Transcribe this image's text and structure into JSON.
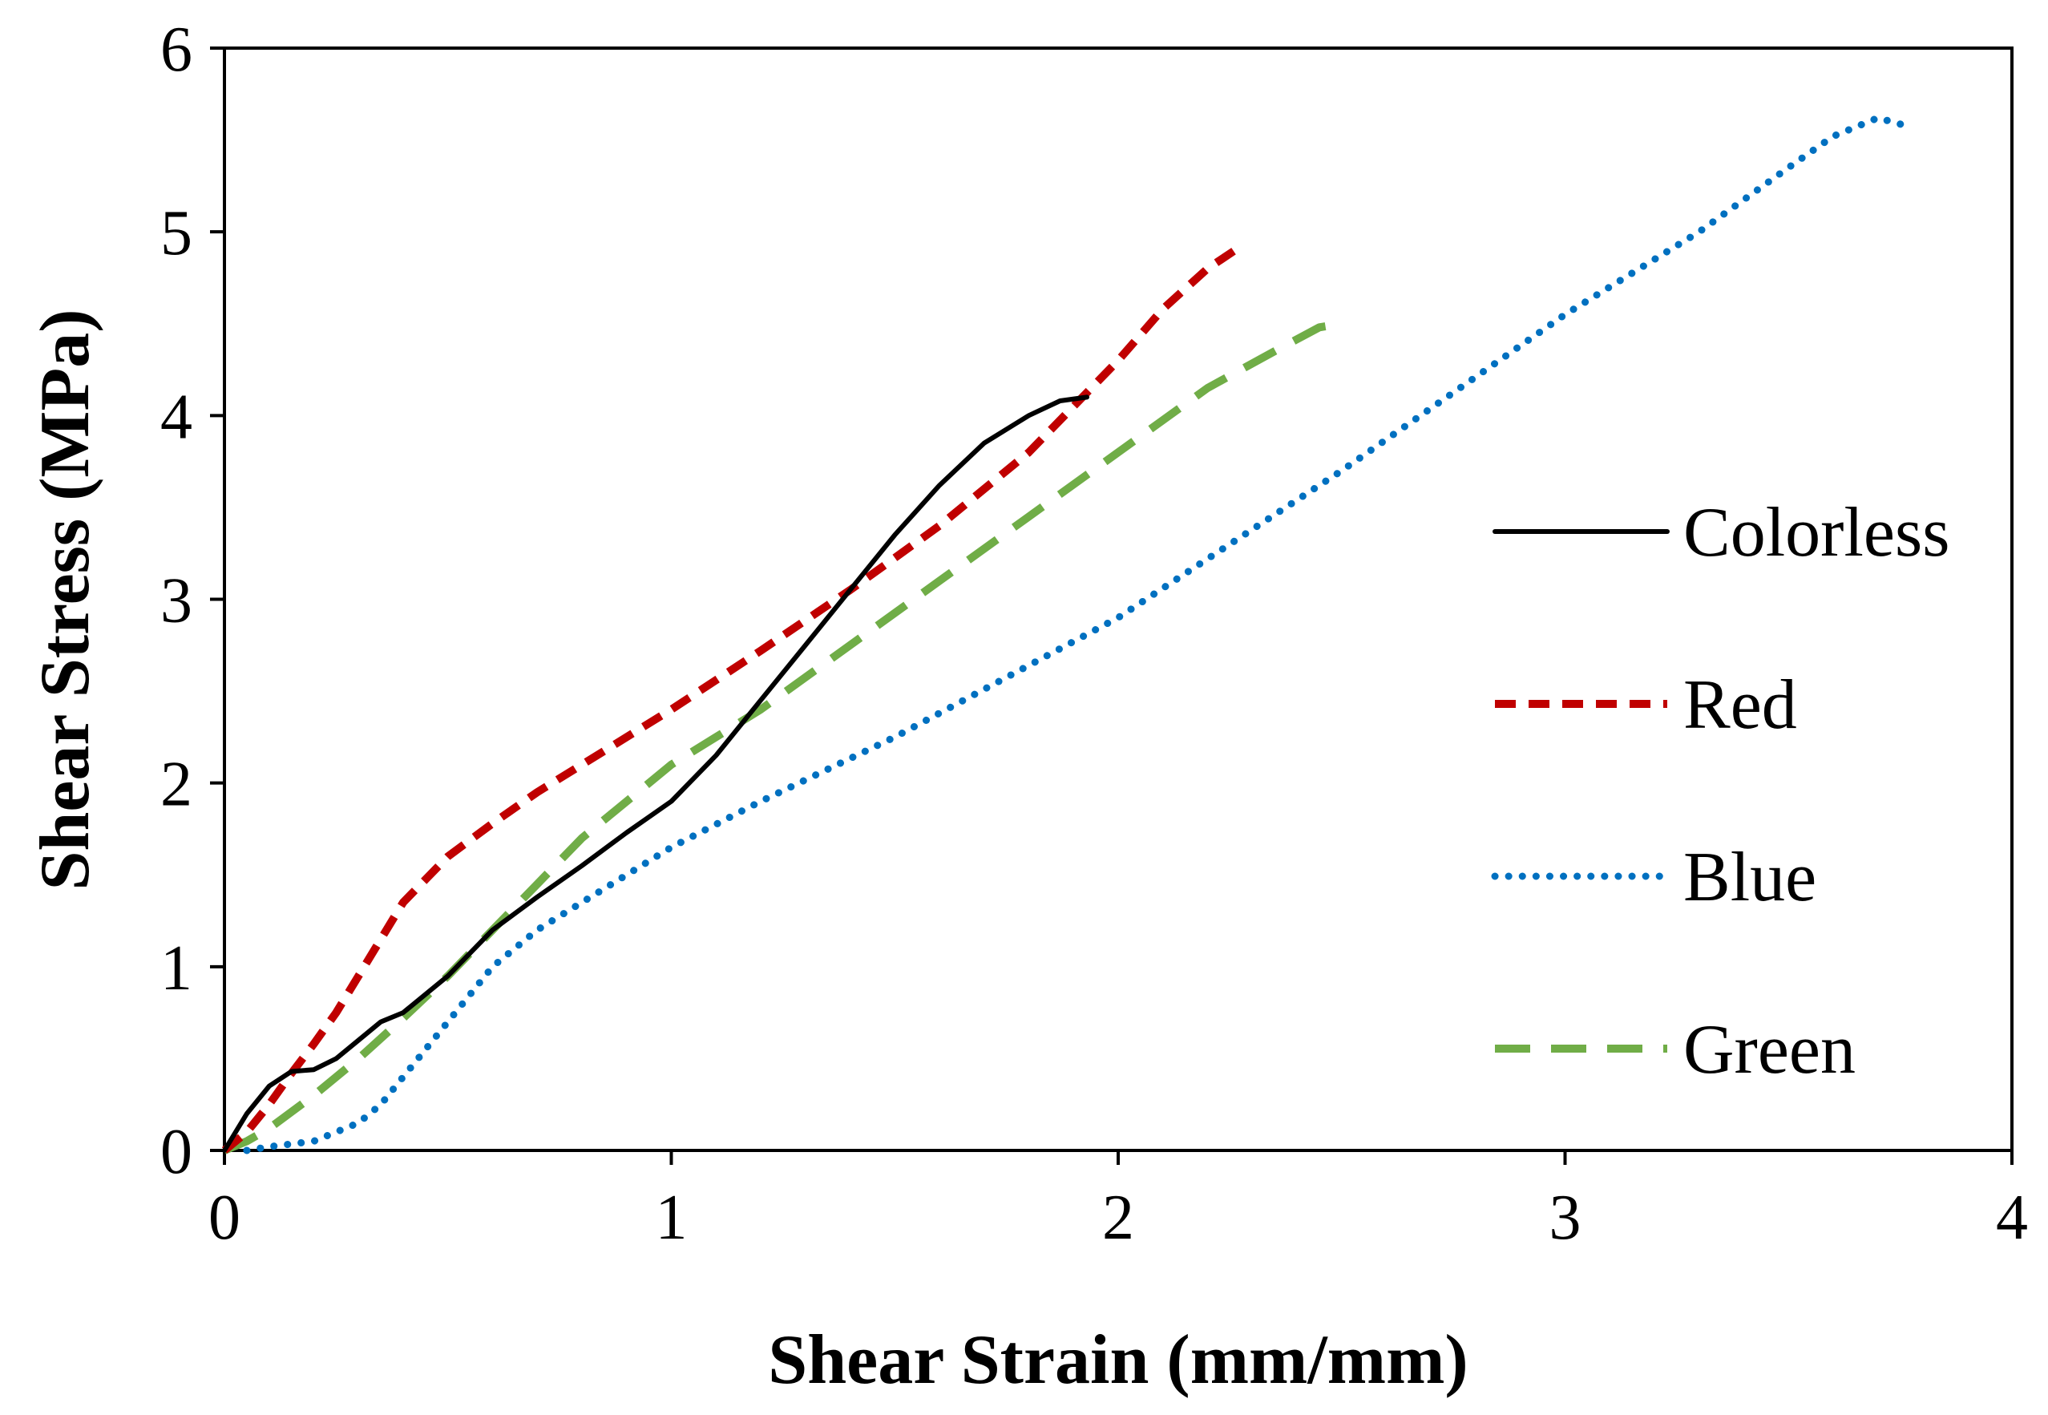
{
  "chart_data": {
    "type": "line",
    "title": "",
    "xlabel": "Shear Strain (mm/mm)",
    "ylabel": "Shear Stress (MPa)",
    "xlim": [
      0,
      4
    ],
    "ylim": [
      0,
      6
    ],
    "xticks": [
      0,
      1,
      2,
      3,
      4
    ],
    "yticks": [
      0,
      1,
      2,
      3,
      4,
      5,
      6
    ],
    "grid": false,
    "legend_position": "right",
    "series": [
      {
        "name": "Colorless",
        "color": "#000000",
        "style": "solid",
        "x": [
          0,
          0.05,
          0.1,
          0.15,
          0.2,
          0.25,
          0.3,
          0.35,
          0.4,
          0.5,
          0.6,
          0.7,
          0.8,
          0.9,
          1.0,
          1.1,
          1.2,
          1.3,
          1.4,
          1.5,
          1.6,
          1.7,
          1.8,
          1.87,
          1.93
        ],
        "y": [
          0,
          0.2,
          0.35,
          0.43,
          0.44,
          0.5,
          0.6,
          0.7,
          0.75,
          0.95,
          1.2,
          1.38,
          1.55,
          1.73,
          1.9,
          2.15,
          2.45,
          2.75,
          3.05,
          3.35,
          3.62,
          3.85,
          4.0,
          4.08,
          4.1
        ]
      },
      {
        "name": "Red",
        "color": "#c00000",
        "style": "dashed",
        "x": [
          0,
          0.05,
          0.1,
          0.15,
          0.2,
          0.25,
          0.3,
          0.35,
          0.4,
          0.5,
          0.6,
          0.7,
          0.8,
          0.9,
          1.0,
          1.2,
          1.4,
          1.6,
          1.8,
          2.0,
          2.1,
          2.2,
          2.28
        ],
        "y": [
          0,
          0.1,
          0.25,
          0.42,
          0.58,
          0.75,
          0.95,
          1.15,
          1.35,
          1.6,
          1.78,
          1.95,
          2.1,
          2.25,
          2.4,
          2.72,
          3.05,
          3.4,
          3.8,
          4.3,
          4.58,
          4.8,
          4.93
        ]
      },
      {
        "name": "Blue",
        "color": "#0070c0",
        "style": "dotted",
        "x": [
          0.05,
          0.1,
          0.2,
          0.3,
          0.35,
          0.4,
          0.5,
          0.6,
          0.7,
          0.8,
          1.0,
          1.2,
          1.5,
          2.0,
          2.5,
          3.0,
          3.3,
          3.5,
          3.6,
          3.7,
          3.76
        ],
        "y": [
          0,
          0.02,
          0.05,
          0.15,
          0.25,
          0.4,
          0.7,
          1.0,
          1.2,
          1.35,
          1.65,
          1.9,
          2.25,
          2.9,
          3.7,
          4.55,
          5.0,
          5.35,
          5.52,
          5.62,
          5.58
        ]
      },
      {
        "name": "Green",
        "color": "#70ad47",
        "style": "long-dashed",
        "x": [
          0,
          0.05,
          0.1,
          0.2,
          0.3,
          0.4,
          0.5,
          0.6,
          0.7,
          0.8,
          1.0,
          1.2,
          1.4,
          1.6,
          1.8,
          2.0,
          2.2,
          2.35,
          2.45,
          2.5
        ],
        "y": [
          0,
          0.05,
          0.12,
          0.3,
          0.5,
          0.72,
          0.95,
          1.2,
          1.45,
          1.7,
          2.1,
          2.4,
          2.75,
          3.1,
          3.45,
          3.8,
          4.15,
          4.35,
          4.48,
          4.5
        ]
      }
    ]
  }
}
